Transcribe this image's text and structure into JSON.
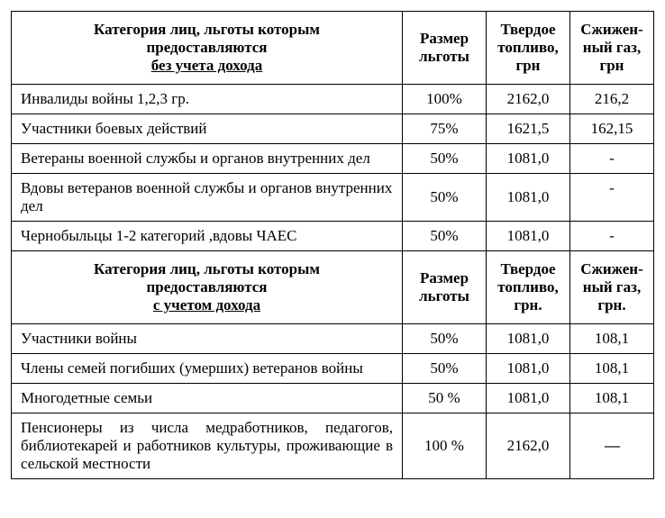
{
  "colors": {
    "text": "#000000",
    "border": "#000000",
    "background": "#ffffff"
  },
  "typography": {
    "font_family": "Times New Roman",
    "base_fontsize": 17,
    "header_weight": "bold"
  },
  "section1": {
    "header": {
      "category_line1": "Категория лиц, льготы которым",
      "category_line2": "предоставляются",
      "category_underline": "без учета дохода",
      "col_size_line1": "Размер",
      "col_size_line2": "льготы",
      "col_fuel_line1": "Твердое",
      "col_fuel_line2": "топливо,",
      "col_fuel_line3": "грн",
      "col_gas_line1": "Сжижен-",
      "col_gas_line2": "ный газ,",
      "col_gas_line3": "грн"
    },
    "rows": [
      {
        "category": "Инвалиды войны 1,2,3 гр.",
        "size": "100%",
        "fuel": "2162,0",
        "gas": "216,2"
      },
      {
        "category": "Участники боевых действий",
        "size": "75%",
        "fuel": "1621,5",
        "gas": "162,15"
      },
      {
        "category": "Ветераны военной службы и органов внутренних дел",
        "size": "50%",
        "fuel": "1081,0",
        "gas": "-"
      },
      {
        "category": "Вдовы ветеранов военной службы и органов внутренних дел",
        "size": "50%",
        "fuel": "1081,0",
        "gas": "-"
      },
      {
        "category": "Чернобыльцы 1-2 категорий ,вдовы ЧАЕС",
        "size": "50%",
        "fuel": "1081,0",
        "gas": "-"
      }
    ]
  },
  "section2": {
    "header": {
      "category_line1": "Категория лиц, льготы которым",
      "category_line2": "предоставляются",
      "category_underline": "с учетом дохода",
      "col_size_line1": "Размер",
      "col_size_line2": "льготы",
      "col_fuel_line1": "Твердое",
      "col_fuel_line2": "топливо,",
      "col_fuel_line3": "грн.",
      "col_gas_line1": "Сжижен-",
      "col_gas_line2": "ный газ,",
      "col_gas_line3": "грн."
    },
    "rows": [
      {
        "category": "Участники войны",
        "size": "50%",
        "fuel": "1081,0",
        "gas": "108,1"
      },
      {
        "category": "Члены семей погибших (умерших) ветеранов войны",
        "size": "50%",
        "fuel": "1081,0",
        "gas": "108,1"
      },
      {
        "category": "Многодетные семьи",
        "size": "50 %",
        "fuel": "1081,0",
        "gas": "108,1"
      },
      {
        "category": "Пенсионеры из числа медработников, педагогов, библиотекарей и работников культуры, проживающие в сельской местности",
        "size": "100 %",
        "fuel": "2162,0",
        "gas": "—",
        "justify": true,
        "emdash": true
      }
    ]
  }
}
